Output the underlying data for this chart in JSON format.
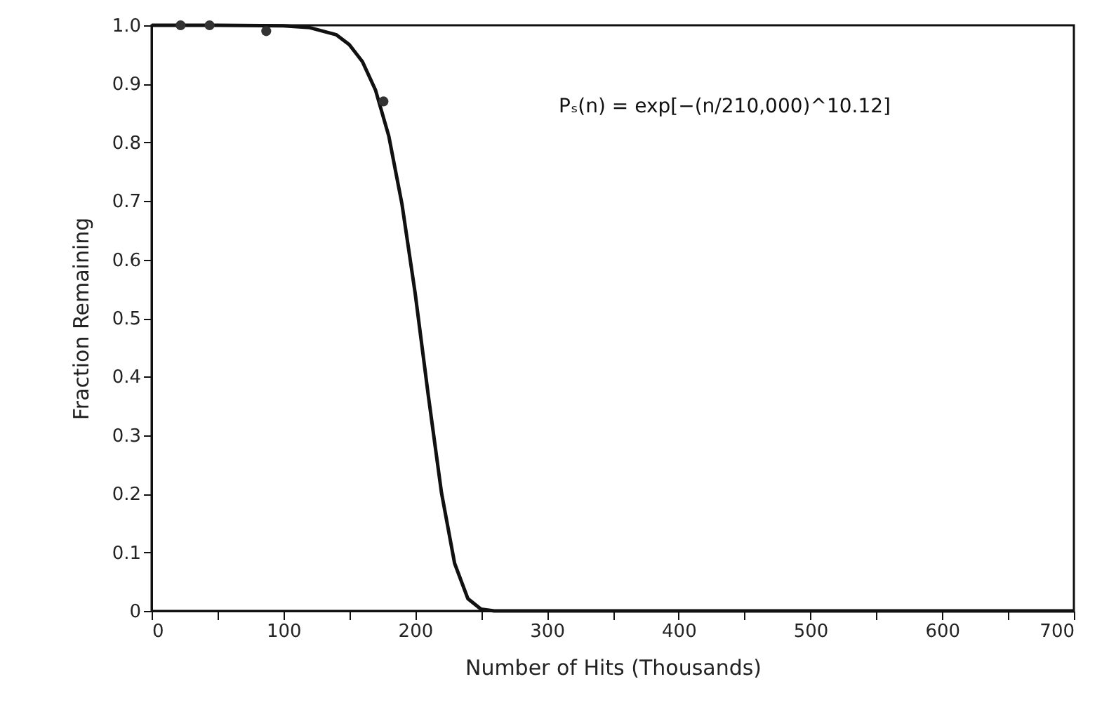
{
  "chart_data": {
    "type": "line",
    "xlabel": "Number of Hits (Thousands)",
    "ylabel": "Fraction Remaining",
    "annotations": [
      "Pₛ(n) = exp[−(n/210,000)^10.12]"
    ],
    "series": [
      {
        "color": "#111111",
        "marker": "none",
        "line_style": "solid",
        "x": [
          0,
          50,
          100,
          120,
          140,
          150,
          160,
          170,
          180,
          190,
          200,
          210,
          220,
          230,
          240,
          250,
          260,
          300,
          400,
          500,
          600,
          700
        ],
        "values": [
          1.0,
          1.0,
          0.999,
          0.996,
          0.984,
          0.967,
          0.938,
          0.889,
          0.811,
          0.695,
          0.543,
          0.368,
          0.202,
          0.081,
          0.021,
          0.003,
          0.0,
          0.0,
          0.0,
          0.0,
          0.0,
          0.0
        ]
      },
      {
        "type": "scatter",
        "color": "#333333",
        "marker": "circle",
        "x": [
          22,
          44,
          87,
          176
        ],
        "values": [
          1.0,
          1.0,
          0.99,
          0.87
        ]
      }
    ],
    "xlim": [
      0,
      700
    ],
    "xticks": [
      0,
      {
        "value": 50,
        "label": null
      },
      100,
      {
        "value": 150,
        "label": null
      },
      200,
      {
        "value": 250,
        "label": null
      },
      300,
      {
        "value": 350,
        "label": null
      },
      400,
      {
        "value": 450,
        "label": null
      },
      500,
      {
        "value": 550,
        "label": null
      },
      600,
      {
        "value": 650,
        "label": null
      },
      700
    ],
    "ylim": [
      0,
      1.0
    ],
    "yticks": [
      0,
      0.1,
      0.2,
      0.3,
      0.4,
      0.5,
      0.6,
      0.7,
      0.8,
      0.9,
      {
        "value": 1.0,
        "label": "1.0"
      }
    ],
    "grid": false
  }
}
